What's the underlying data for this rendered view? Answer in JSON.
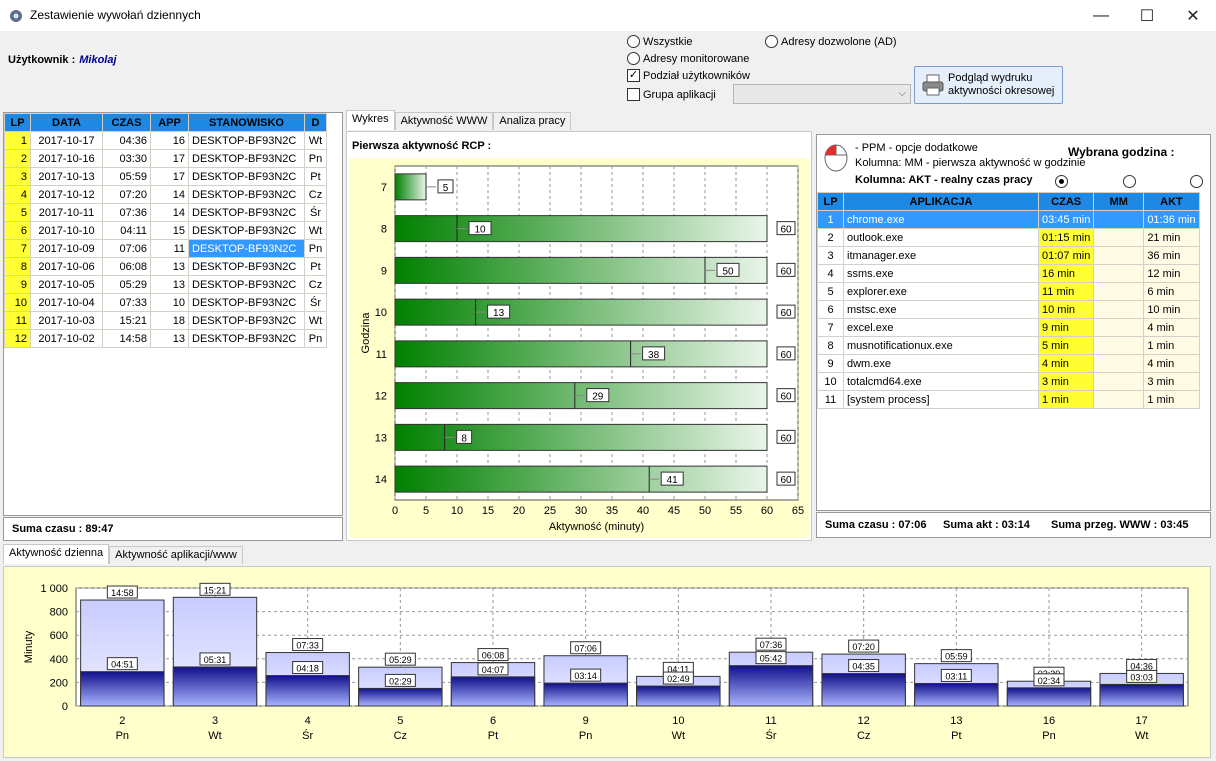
{
  "window": {
    "title": "Zestawienie wywołań dziennych",
    "minimize": "—",
    "maximize": "☐",
    "close": "✕"
  },
  "user": {
    "label": "Użytkownik :",
    "name": "Mikolaj"
  },
  "options": {
    "wszystkie": "Wszystkie",
    "adresy_monitorowane": "Adresy monitorowane",
    "podzial": "Podział użytkowników",
    "grupa": "Grupa aplikacji",
    "adresy_dozwolone": "Adresy dozwolone (AD)"
  },
  "print_button": {
    "line1": "Podgląd wydruku",
    "line2": "aktywności okresowej"
  },
  "left_table": {
    "headers": [
      "LP",
      "DATA",
      "CZAS",
      "APP",
      "STANOWISKO",
      "D"
    ],
    "rows": [
      [
        "1",
        "2017-10-17",
        "04:36",
        "16",
        "DESKTOP-BF93N2C",
        "Wt"
      ],
      [
        "2",
        "2017-10-16",
        "03:30",
        "17",
        "DESKTOP-BF93N2C",
        "Pn"
      ],
      [
        "3",
        "2017-10-13",
        "05:59",
        "17",
        "DESKTOP-BF93N2C",
        "Pt"
      ],
      [
        "4",
        "2017-10-12",
        "07:20",
        "14",
        "DESKTOP-BF93N2C",
        "Cz"
      ],
      [
        "5",
        "2017-10-11",
        "07:36",
        "14",
        "DESKTOP-BF93N2C",
        "Śr"
      ],
      [
        "6",
        "2017-10-10",
        "04:11",
        "15",
        "DESKTOP-BF93N2C",
        "Wt"
      ],
      [
        "7",
        "2017-10-09",
        "07:06",
        "11",
        "DESKTOP-BF93N2C",
        "Pn"
      ],
      [
        "8",
        "2017-10-06",
        "06:08",
        "13",
        "DESKTOP-BF93N2C",
        "Pt"
      ],
      [
        "9",
        "2017-10-05",
        "05:29",
        "13",
        "DESKTOP-BF93N2C",
        "Cz"
      ],
      [
        "10",
        "2017-10-04",
        "07:33",
        "10",
        "DESKTOP-BF93N2C",
        "Śr"
      ],
      [
        "11",
        "2017-10-03",
        "15:21",
        "18",
        "DESKTOP-BF93N2C",
        "Wt"
      ],
      [
        "12",
        "2017-10-02",
        "14:58",
        "13",
        "DESKTOP-BF93N2C",
        "Pn"
      ]
    ],
    "selected_row": 6,
    "sum": "Suma czasu : 89:47"
  },
  "mid_tabs": [
    "Wykres",
    "Aktywność WWW",
    "Analiza pracy"
  ],
  "chart_title": "Pierwsza aktywność RCP :",
  "chart_data": [
    {
      "type": "bar",
      "orientation": "horizontal",
      "title": "",
      "xlabel": "Aktywność (minuty)",
      "ylabel": "Godzina",
      "categories": [
        "7",
        "8",
        "9",
        "10",
        "11",
        "12",
        "13",
        "14"
      ],
      "values": [
        5,
        10,
        50,
        13,
        38,
        29,
        8,
        41
      ],
      "totals": [
        null,
        60,
        60,
        60,
        60,
        60,
        60,
        60
      ],
      "xlim": [
        0,
        65
      ],
      "xticks": [
        "0",
        "5",
        "10",
        "15",
        "20",
        "25",
        "30",
        "35",
        "40",
        "45",
        "50",
        "55",
        "60",
        "65"
      ],
      "grid": true,
      "colors": {
        "bar": "#008000",
        "background": "#ffffcc"
      }
    },
    {
      "type": "bar",
      "title": "",
      "xlabel": "",
      "ylabel": "Minuty",
      "categories": [
        "2",
        "3",
        "4",
        "5",
        "6",
        "9",
        "10",
        "11",
        "12",
        "13",
        "16",
        "17"
      ],
      "days": [
        "Pn",
        "Wt",
        "Śr",
        "Cz",
        "Pt",
        "Pn",
        "Wt",
        "Śr",
        "Cz",
        "Pt",
        "Pn",
        "Wt"
      ],
      "series": [
        {
          "values": [
            898,
            921,
            453,
            329,
            368,
            426,
            251,
            456,
            440,
            359,
            210,
            276
          ],
          "labels": [
            "14:58",
            "15:21",
            "07:33",
            "05:29",
            "06:08",
            "07:06",
            "04:11",
            "07:36",
            "07:20",
            "05:59",
            "03:30",
            "04:36"
          ]
        },
        {
          "values": [
            291,
            331,
            258,
            149,
            247,
            194,
            169,
            342,
            275,
            191,
            154,
            183
          ],
          "labels": [
            "04:51",
            "05:31",
            "04:18",
            "02:29",
            "04:07",
            "03:14",
            "02:49",
            "05:42",
            "04:35",
            "03:11",
            "02:34",
            "03:03"
          ]
        }
      ],
      "ylim": [
        0,
        1000
      ],
      "yticks": [
        "0",
        "200",
        "400",
        "600",
        "800",
        "1 000"
      ],
      "grid": true,
      "colors": {
        "total": "#aab4ff",
        "active": "#1a1aa0"
      }
    }
  ],
  "right_panel": {
    "ppm": "- PPM - opcje dodatkowe",
    "col_mm": "Kolumna: MM - pierwsza aktywność w godzinie",
    "col_akt": "Kolumna: AKT - realny czas pracy",
    "wybrana": "Wybrana godzina :",
    "headers": [
      "LP",
      "APLIKACJA",
      "CZAS",
      "MM",
      "AKT"
    ],
    "rows": [
      [
        "1",
        "chrome.exe",
        "03:45 min",
        "",
        "01:36 min"
      ],
      [
        "2",
        "outlook.exe",
        "01:15 min",
        "",
        "21 min"
      ],
      [
        "3",
        "itmanager.exe",
        "01:07 min",
        "",
        "36 min"
      ],
      [
        "4",
        "ssms.exe",
        "16 min",
        "",
        "12 min"
      ],
      [
        "5",
        "explorer.exe",
        "11 min",
        "",
        "6 min"
      ],
      [
        "6",
        "mstsc.exe",
        "10 min",
        "",
        "10 min"
      ],
      [
        "7",
        "excel.exe",
        "9 min",
        "",
        "4 min"
      ],
      [
        "8",
        "musnotificationux.exe",
        "5 min",
        "",
        "1 min"
      ],
      [
        "9",
        "dwm.exe",
        "4 min",
        "",
        "4 min"
      ],
      [
        "10",
        "totalcmd64.exe",
        "3 min",
        "",
        "3 min"
      ],
      [
        "11",
        "[system process]",
        "1 min",
        "",
        "1 min"
      ]
    ],
    "sum_czasu": "Suma czasu : 07:06",
    "sum_akt": "Suma akt : 03:14",
    "sum_www": "Suma przeg. WWW : 03:45"
  },
  "bottom_tabs": [
    "Aktywność dzienna",
    "Aktywność aplikacji/www"
  ]
}
